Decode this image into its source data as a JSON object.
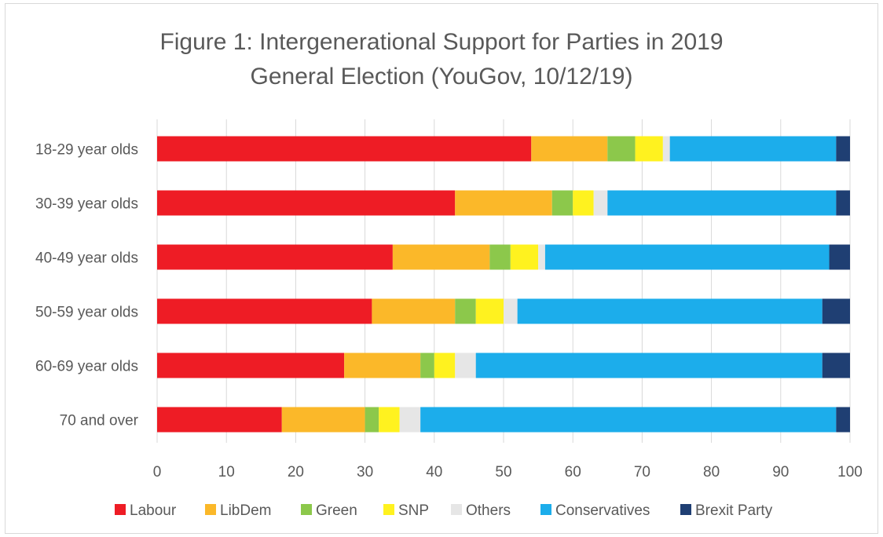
{
  "chart_data": {
    "type": "bar",
    "orientation": "horizontal",
    "stacked": true,
    "title_lines": [
      "Figure 1: Intergenerational Support for Parties in 2019",
      "General Election (YouGov, 10/12/19)"
    ],
    "categories": [
      "18-29 year olds",
      "30-39 year olds",
      "40-49 year olds",
      "50-59 year olds",
      "60-69 year olds",
      "70 and over"
    ],
    "series": [
      {
        "name": "Labour",
        "color": "#ee1c25",
        "values": [
          54,
          43,
          34,
          31,
          27,
          18
        ]
      },
      {
        "name": "LibDem",
        "color": "#fbb829",
        "values": [
          11,
          14,
          14,
          12,
          11,
          12
        ]
      },
      {
        "name": "Green",
        "color": "#8cc84b",
        "values": [
          4,
          3,
          3,
          3,
          2,
          2
        ]
      },
      {
        "name": "SNP",
        "color": "#fff21f",
        "values": [
          4,
          3,
          4,
          4,
          3,
          3
        ]
      },
      {
        "name": "Others",
        "color": "#e6e6e6",
        "values": [
          1,
          2,
          1,
          2,
          3,
          3
        ]
      },
      {
        "name": "Conservatives",
        "color": "#1cadeb",
        "values": [
          24,
          33,
          41,
          44,
          50,
          60
        ]
      },
      {
        "name": "Brexit Party",
        "color": "#1f3f73",
        "values": [
          2,
          2,
          3,
          4,
          4,
          2
        ]
      }
    ],
    "xlim": [
      0,
      100
    ],
    "xticks": [
      0,
      10,
      20,
      30,
      40,
      50,
      60,
      70,
      80,
      90,
      100
    ],
    "grid": "vertical",
    "legend_position": "bottom"
  }
}
